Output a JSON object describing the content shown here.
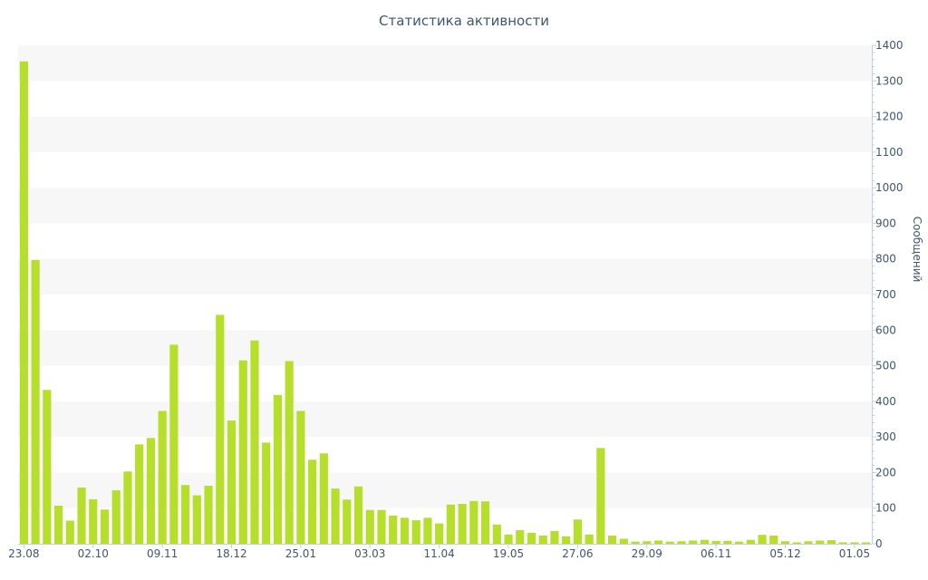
{
  "chart_data": {
    "type": "bar",
    "title": "Статистика активности",
    "ylabel": "Сообщений",
    "xlabel": "",
    "ylim": [
      0,
      1400
    ],
    "y_ticks": [
      0,
      100,
      200,
      300,
      400,
      500,
      600,
      700,
      800,
      900,
      1000,
      1100,
      1200,
      1300,
      1400
    ],
    "y_axis_side": "right",
    "grid": "alternating horizontal bands",
    "legend": "none",
    "bar_color": "#b5df2a",
    "x_tick_labels": [
      "23.08",
      "02.10",
      "09.11",
      "18.12",
      "25.01",
      "03.03",
      "11.04",
      "19.05",
      "27.06",
      "29.09",
      "06.11",
      "05.12",
      "01.05"
    ],
    "values": [
      1355,
      797,
      432,
      107,
      65,
      158,
      125,
      96,
      150,
      203,
      279,
      297,
      373,
      559,
      165,
      136,
      163,
      643,
      346,
      515,
      571,
      284,
      418,
      513,
      373,
      236,
      254,
      155,
      124,
      161,
      95,
      95,
      79,
      73,
      66,
      73,
      57,
      110,
      112,
      120,
      119,
      54,
      26,
      38,
      31,
      23,
      36,
      21,
      68,
      26,
      269,
      23,
      14,
      6,
      7,
      9,
      6,
      7,
      9,
      11,
      8,
      8,
      6,
      11,
      25,
      23,
      7,
      4,
      7,
      9,
      10,
      4,
      4,
      4
    ]
  }
}
